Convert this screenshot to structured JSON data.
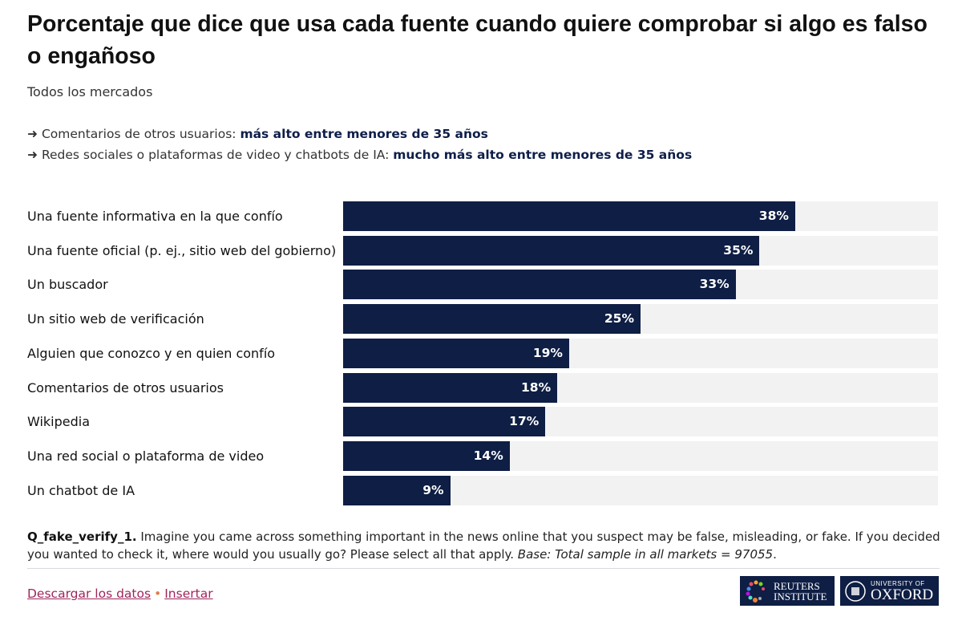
{
  "title": "Porcentaje que dice que usa cada fuente cuando quiere comprobar si algo es falso o engañoso",
  "subtitle": "Todos los mercados",
  "notes": [
    {
      "arrow": "➜",
      "text": "Comentarios de otros usuarios: ",
      "highlight": "más alto entre menores de 35 años"
    },
    {
      "arrow": "➜",
      "text": "Redes sociales o plataformas de video y chatbots de IA: ",
      "highlight": "mucho más alto entre menores de 35 años"
    }
  ],
  "chart_data": {
    "type": "bar",
    "orientation": "horizontal",
    "categories": [
      "Una fuente informativa en la que confío",
      "Una fuente oficial (p. ej., sitio web del gobierno)",
      "Un buscador",
      "Un sitio web de verificación",
      "Alguien que conozco y en quien confío",
      "Comentarios de otros usuarios",
      "Wikipedia",
      "Una red social o plataforma de video",
      "Un chatbot de IA"
    ],
    "values": [
      38,
      35,
      33,
      25,
      19,
      18,
      17,
      14,
      9
    ],
    "value_labels": [
      "38%",
      "35%",
      "33%",
      "25%",
      "19%",
      "18%",
      "17%",
      "14%",
      "9%"
    ],
    "xlim": [
      0,
      50
    ],
    "bar_color": "#0e1e44",
    "track_color": "#f2f2f3"
  },
  "footer": {
    "question_id": "Q_fake_verify_1.",
    "question_text": " Imagine you came across something important in the news online that you suspect may be false, misleading, or fake. If you decided you wanted to check it, where would you usually go? Please select all that apply. ",
    "base": "Base: Total sample in all markets = 97055",
    "base_end": ".",
    "download_label": "Descargar los datos",
    "separator": "•",
    "embed_label": "Insertar",
    "logo_reuters_1": "REUTERS",
    "logo_reuters_2": "INSTITUTE",
    "logo_oxford_1": "UNIVERSITY OF",
    "logo_oxford_2": "OXFORD"
  }
}
